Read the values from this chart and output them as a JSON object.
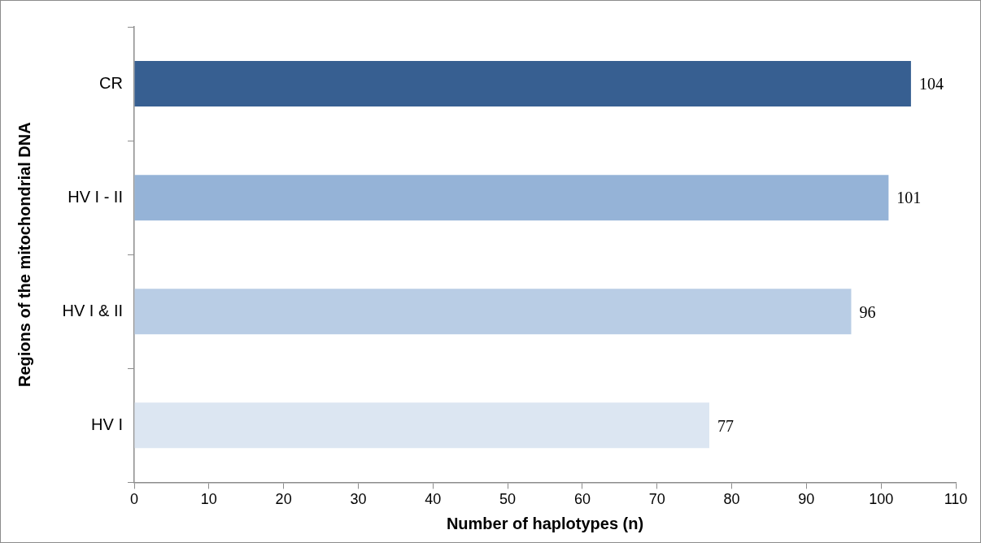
{
  "chart_data": {
    "type": "bar",
    "orientation": "horizontal",
    "categories": [
      "CR",
      "HV I - II",
      "HV I & II",
      "HV I"
    ],
    "values": [
      104,
      101,
      96,
      77
    ],
    "colors": [
      "#375f91",
      "#95b3d7",
      "#b9cde5",
      "#dce6f2"
    ],
    "xlabel": "Number of haplotypes (n)",
    "ylabel": "Regions of the mitochondrial DNA",
    "xlim": [
      0,
      110
    ],
    "xticks": [
      0,
      10,
      20,
      30,
      40,
      50,
      60,
      70,
      80,
      90,
      100,
      110
    ],
    "data_labels": true,
    "grid": false,
    "legend": false
  }
}
